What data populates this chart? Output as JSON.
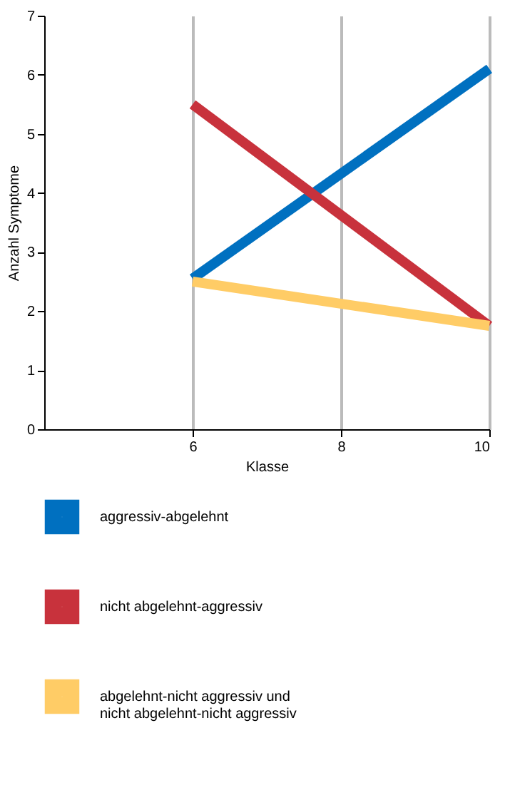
{
  "chart_data": {
    "type": "line",
    "xlabel": "Klasse",
    "ylabel": "Anzahl Symptome",
    "x": [
      6,
      10
    ],
    "series": [
      {
        "name": "aggressiv-abgelehnt",
        "color": "#0070c0",
        "values": [
          2.55,
          6.1
        ]
      },
      {
        "name": "nicht abgelehnt-aggressiv",
        "color": "#c8323c",
        "values": [
          5.5,
          1.75
        ]
      },
      {
        "name": "abgelehnt-nicht aggressiv und nicht abgelehnt-nicht aggressiv",
        "color": "#ffcc66",
        "values": [
          2.5,
          1.75
        ]
      }
    ],
    "xlim": [
      4,
      10
    ],
    "xticks": [
      6,
      8,
      10
    ],
    "ylim": [
      0,
      7
    ],
    "yticks": [
      0,
      1,
      2,
      3,
      4,
      5,
      6,
      7
    ],
    "grid": "x",
    "legend": "bottom",
    "marker": "none",
    "line_style": "solid"
  }
}
